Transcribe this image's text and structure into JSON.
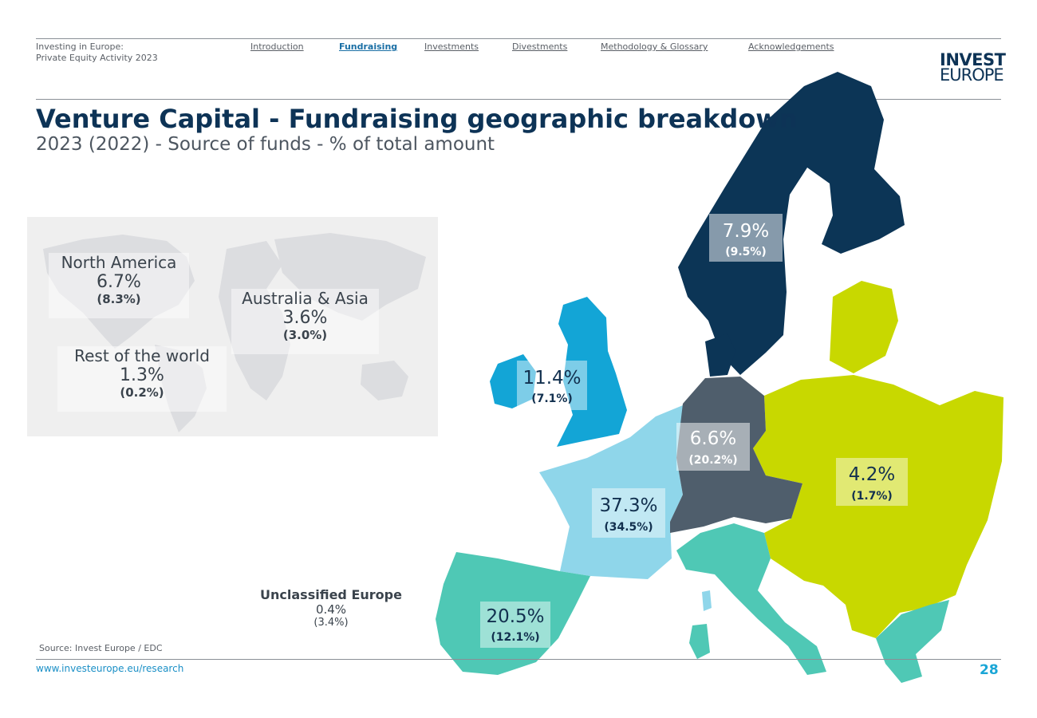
{
  "header": {
    "doc_title_line1": "Investing in Europe:",
    "doc_title_line2": "Private Equity Activity 2023",
    "nav": [
      {
        "label": "Introduction",
        "active": false
      },
      {
        "label": "Fundraising",
        "active": true
      },
      {
        "label": "Investments",
        "active": false
      },
      {
        "label": "Divestments",
        "active": false
      },
      {
        "label": "Methodology & Glossary",
        "active": false
      },
      {
        "label": "Acknowledgements",
        "active": false
      }
    ],
    "logo_line1": "INVEST",
    "logo_line2": "EUROPE"
  },
  "title": "Venture Capital - Fundraising geographic breakdown",
  "subtitle": "2023 (2022) - Source of funds - % of total amount",
  "world": {
    "north_america": {
      "name": "North America",
      "value": "6.7%",
      "prev": "(8.3%)"
    },
    "australia_asia": {
      "name": "Australia & Asia",
      "value": "3.6%",
      "prev": "(3.0%)"
    },
    "rest_of_world": {
      "name": "Rest of the world",
      "value": "1.3%",
      "prev": "(0.2%)"
    }
  },
  "regions": {
    "nordics": {
      "value": "7.9%",
      "prev": "(9.5%)"
    },
    "uk_ireland": {
      "value": "11.4%",
      "prev": "(7.1%)"
    },
    "dach": {
      "value": "6.6%",
      "prev": "(20.2%)"
    },
    "cee": {
      "value": "4.2%",
      "prev": "(1.7%)"
    },
    "france_benelux": {
      "value": "37.3%",
      "prev": "(34.5%)"
    },
    "southern_europe": {
      "value": "20.5%",
      "prev": "(12.1%)"
    }
  },
  "unclassified": {
    "name": "Unclassified Europe",
    "value": "0.4%",
    "prev": "(3.4%)"
  },
  "colors": {
    "nordics": "#0c3556",
    "uk_ireland": "#13a5d6",
    "dach": "#4f5e6c",
    "cee": "#c8d800",
    "france_benelux": "#8fd6ea",
    "southern_europe": "#4fc8b5"
  },
  "source": "Source: Invest Europe / EDC",
  "footer_url": "www.investeurope.eu/research",
  "page_number": "28"
}
